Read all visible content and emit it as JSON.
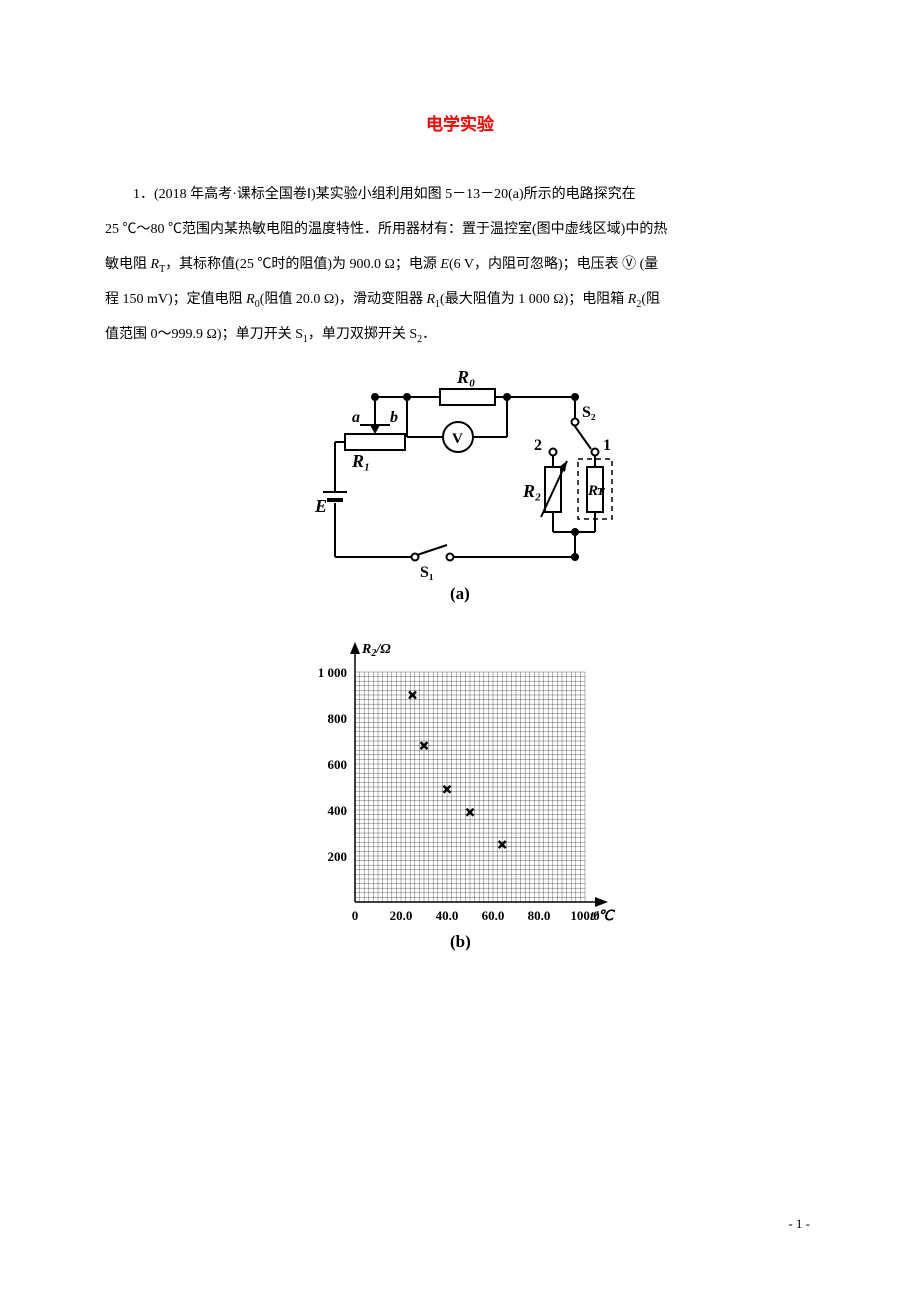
{
  "title": "电学实验",
  "title_color": "#ff0000",
  "paragraph": "1．(2018 年高考·课标全国卷Ⅰ)某实验小组利用如图 5－13－20(a)所示的电路探究在25 ℃～80 ℃范围内某热敏电阻的温度特性．所用器材有：置于温控室(图中虚线区域)中的热敏电阻 R_T，其标称值(25 ℃时的阻值)为 900.0 Ω；电源 E(6 V，内阻可忽略)；电压表 Ⓥ (量程 150 mV)；定值电阻 R_0(阻值 20.0 Ω)，滑动变阻器 R_1(最大阻值为 1 000 Ω)；电阻箱 R_2(阻值范围 0～999.9 Ω)；单刀开关 S_1，单刀双掷开关 S_2．",
  "circuit": {
    "label_R0": "R₀",
    "label_a": "a",
    "label_b": "b",
    "label_R1": "R₁",
    "label_E": "E",
    "label_S1": "S₁",
    "label_S2": "S₂",
    "label_2": "2",
    "label_1": "1",
    "label_R2": "R₂",
    "label_RT": "Rᴛ",
    "label_V": "V",
    "caption": "(a)",
    "stroke_color": "#000000",
    "stroke_width": 2
  },
  "chart": {
    "type": "scatter",
    "xlabel": "t/℃",
    "ylabel": "R₂/Ω",
    "xlim": [
      0,
      100
    ],
    "ylim": [
      0,
      1000
    ],
    "xtick_step": 20,
    "ytick_step": 200,
    "xtick_labels": [
      "0",
      "20.0",
      "40.0",
      "60.0",
      "80.0",
      "100.0"
    ],
    "ytick_labels": [
      "0",
      "200",
      "400",
      "600",
      "800",
      "1 000"
    ],
    "points": [
      {
        "x": 25,
        "y": 900
      },
      {
        "x": 30,
        "y": 680
      },
      {
        "x": 40,
        "y": 490
      },
      {
        "x": 50,
        "y": 390
      },
      {
        "x": 64,
        "y": 250
      }
    ],
    "marker": "x-bold",
    "marker_size": 7,
    "grid_minor_step_x": 2,
    "grid_minor_step_y": 20,
    "grid_color": "#000000",
    "grid_stroke_width": 0.3,
    "axis_stroke_width": 1.5,
    "fontsize": 12,
    "caption": "(b)",
    "background_color": "#ffffff"
  },
  "page_number": "- 1 -"
}
